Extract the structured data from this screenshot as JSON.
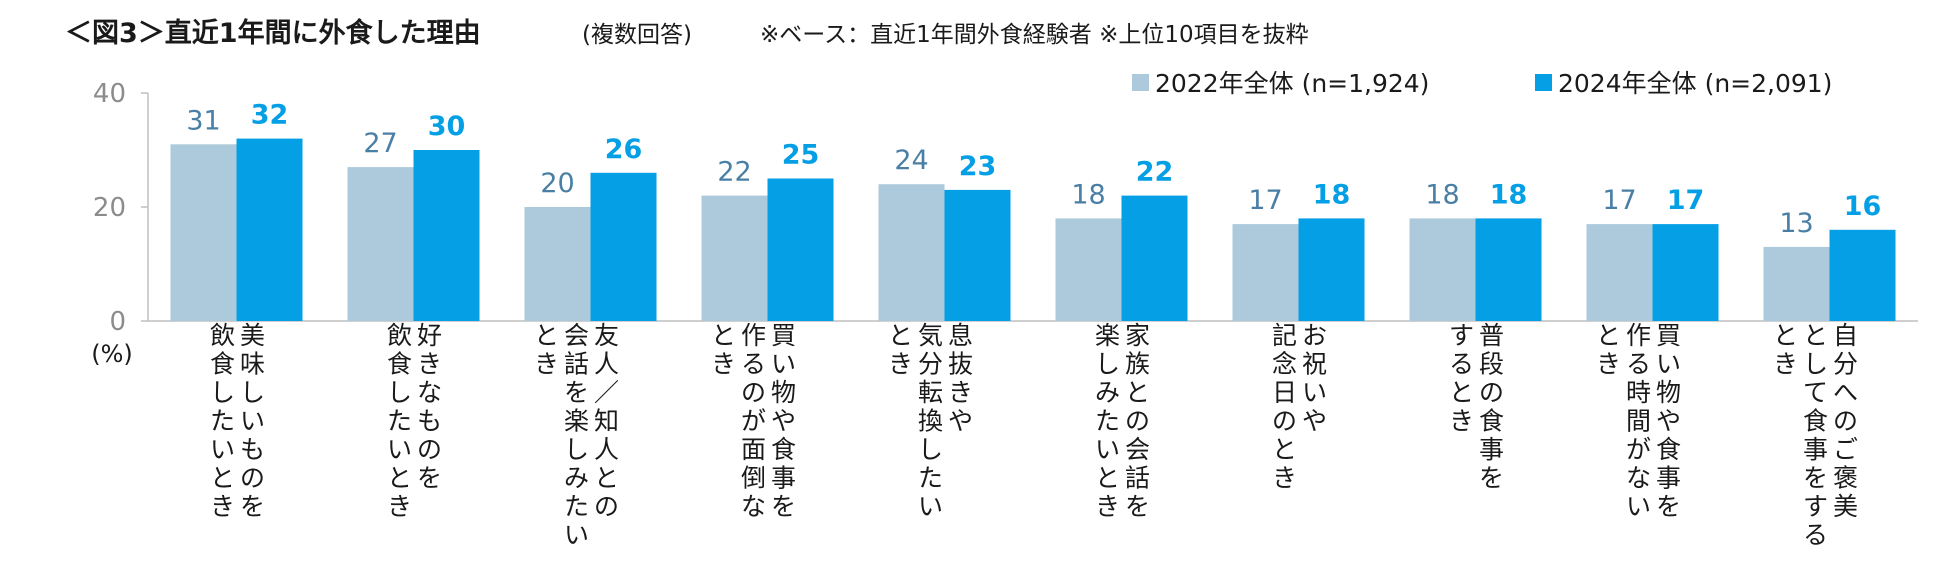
{
  "chart_data": {
    "type": "bar",
    "title": "＜図3＞直近1年間に外食した理由",
    "title_note": "(複数回答)",
    "subtitle": "※ベース：直近1年間外食経験者 ※上位10項目を抜粋",
    "ylabel": "(%)",
    "ylim": [
      0,
      40
    ],
    "yticks": [
      0,
      20,
      40
    ],
    "grid": false,
    "legend_position": "top-right",
    "categories": [
      [
        "美味しいものを",
        "飲食したいとき"
      ],
      [
        "好きなものを",
        "飲食したいとき"
      ],
      [
        "友人／知人との",
        "会話を楽しみたい",
        "とき"
      ],
      [
        "買い物や食事を",
        "作るのが面倒な",
        "とき"
      ],
      [
        "息抜きや",
        "気分転換したい",
        "とき"
      ],
      [
        "家族との会話を",
        "楽しみたいとき"
      ],
      [
        "お祝いや",
        "記念日のとき"
      ],
      [
        "普段の食事を",
        "するとき"
      ],
      [
        "買い物や食事を",
        "作る時間がない",
        "とき"
      ],
      [
        "自分へのご褒美",
        "として食事をする",
        "とき"
      ]
    ],
    "series": [
      {
        "name": "2022年全体 (n=1,924)",
        "color": "#adcadc",
        "label_color": "#4a7fa5",
        "label_bold": false,
        "values": [
          31,
          27,
          20,
          22,
          24,
          18,
          17,
          18,
          17,
          13
        ]
      },
      {
        "name": "2024年全体 (n=2,091)",
        "color": "#059fe5",
        "label_color": "#059fe5",
        "label_bold": true,
        "values": [
          32,
          30,
          26,
          25,
          23,
          22,
          18,
          18,
          17,
          16
        ]
      }
    ],
    "colors": {
      "axis": "#bfbfbf",
      "tick_text": "#8c8c8c",
      "text": "#1a1a1a"
    }
  }
}
